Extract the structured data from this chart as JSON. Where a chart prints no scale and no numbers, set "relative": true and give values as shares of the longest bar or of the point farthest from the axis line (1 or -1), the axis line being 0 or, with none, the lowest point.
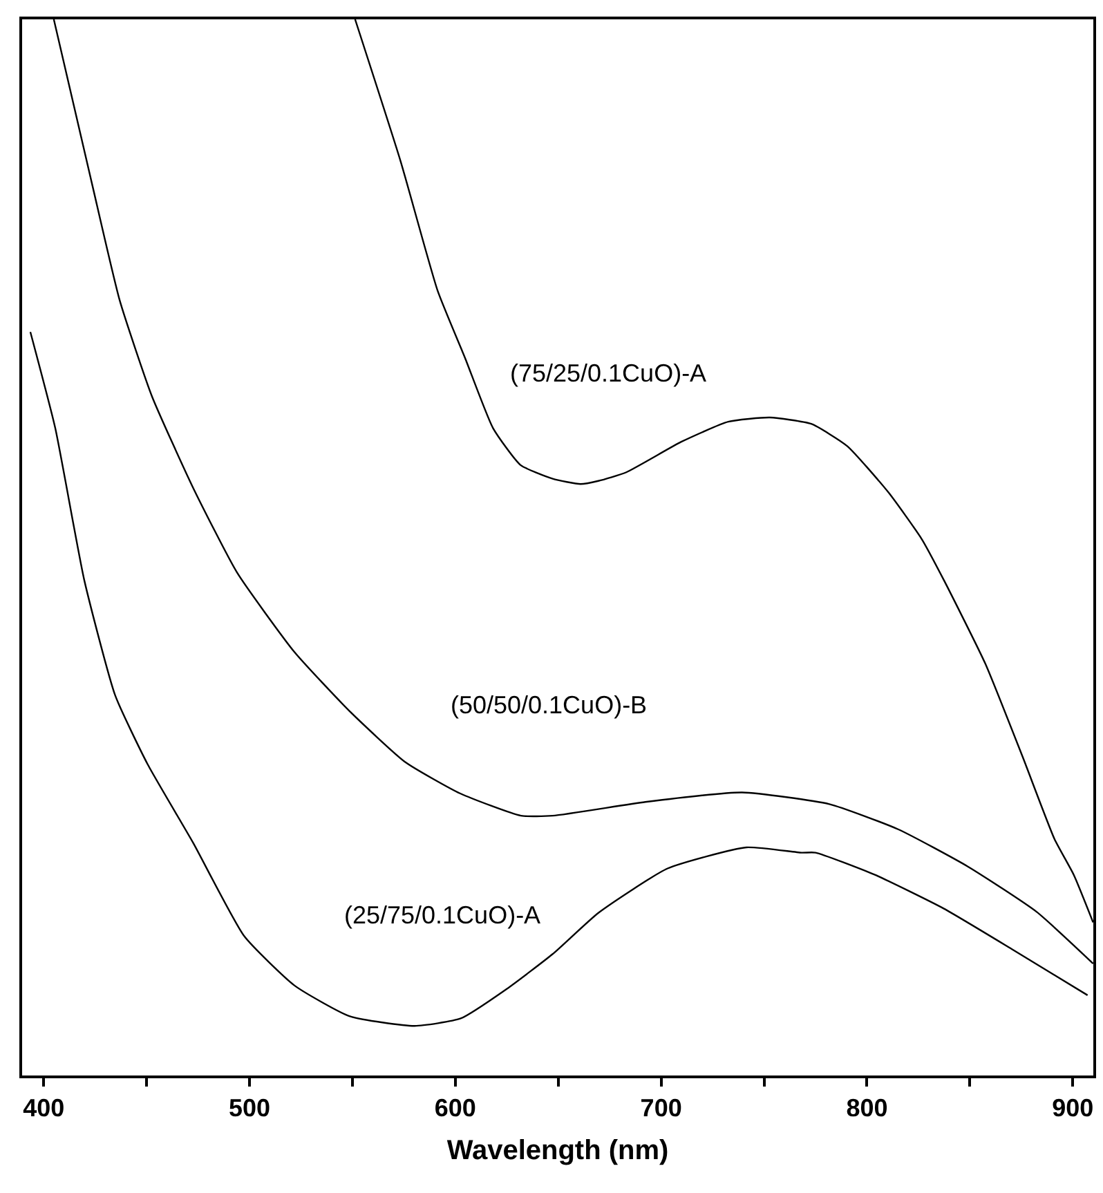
{
  "chart_data": {
    "type": "line",
    "xlabel": "Wavelength (nm)",
    "relative": true,
    "tick_labels": "x",
    "marker": "none",
    "line_style": "solid",
    "xlim": [
      389.5,
      910
    ],
    "xticks": [
      400,
      {
        "value": 450,
        "label": null
      },
      500,
      {
        "value": 550,
        "label": null
      },
      600,
      {
        "value": 650,
        "label": null
      },
      700,
      {
        "value": 750,
        "label": null
      },
      800,
      {
        "value": 850,
        "label": null
      },
      900
    ],
    "series": [
      {
        "name": "(75/25/0.1CuO)-A",
        "color": "#000000",
        "x": [
          551.3,
          573.5,
          591.4,
          604.8,
          618.3,
          631.7,
          647.3,
          660.8,
          669.5,
          682.9,
          709.8,
          732.6,
          752.8,
          772.9,
          790.4,
          810.5,
          826.6,
          837.4,
          857.5,
          875.6,
          891.1,
          900.5,
          909.9
        ],
        "values": [
          1.0,
          0.865,
          0.743,
          0.679,
          0.613,
          0.578,
          0.565,
          0.56,
          0.563,
          0.571,
          0.6,
          0.619,
          0.623,
          0.617,
          0.596,
          0.552,
          0.508,
          0.469,
          0.39,
          0.302,
          0.224,
          0.19,
          0.145
        ]
      },
      {
        "name": "(50/50/0.1CuO)-B",
        "color": "#000000",
        "x": [
          404.9,
          423.5,
          436.9,
          452.6,
          472.7,
          494.0,
          521.8,
          548.6,
          575.5,
          602.4,
          631.9,
          647.3,
          692.3,
          739.4,
          781.7,
          815.3,
          848.9,
          882.4,
          909.9
        ],
        "values": [
          1.0,
          0.844,
          0.734,
          0.643,
          0.556,
          0.476,
          0.401,
          0.345,
          0.297,
          0.267,
          0.246,
          0.246,
          0.259,
          0.268,
          0.257,
          0.233,
          0.198,
          0.155,
          0.106
        ]
      },
      {
        "name": "(25/75/0.1CuO)-A",
        "color": "#000000",
        "x": [
          393.5,
          405.6,
          419.7,
          434.7,
          450.4,
          472.7,
          497.4,
          522.0,
          548.8,
          580.2,
          602.6,
          625.0,
          647.3,
          669.5,
          703.1,
          741.4,
          768.2,
          775.0,
          803.9,
          837.4,
          871.0,
          907.2
        ],
        "values": [
          0.704,
          0.613,
          0.469,
          0.36,
          0.295,
          0.22,
          0.132,
          0.085,
          0.056,
          0.047,
          0.054,
          0.082,
          0.115,
          0.154,
          0.196,
          0.216,
          0.211,
          0.211,
          0.19,
          0.158,
          0.119,
          0.076
        ]
      }
    ]
  }
}
